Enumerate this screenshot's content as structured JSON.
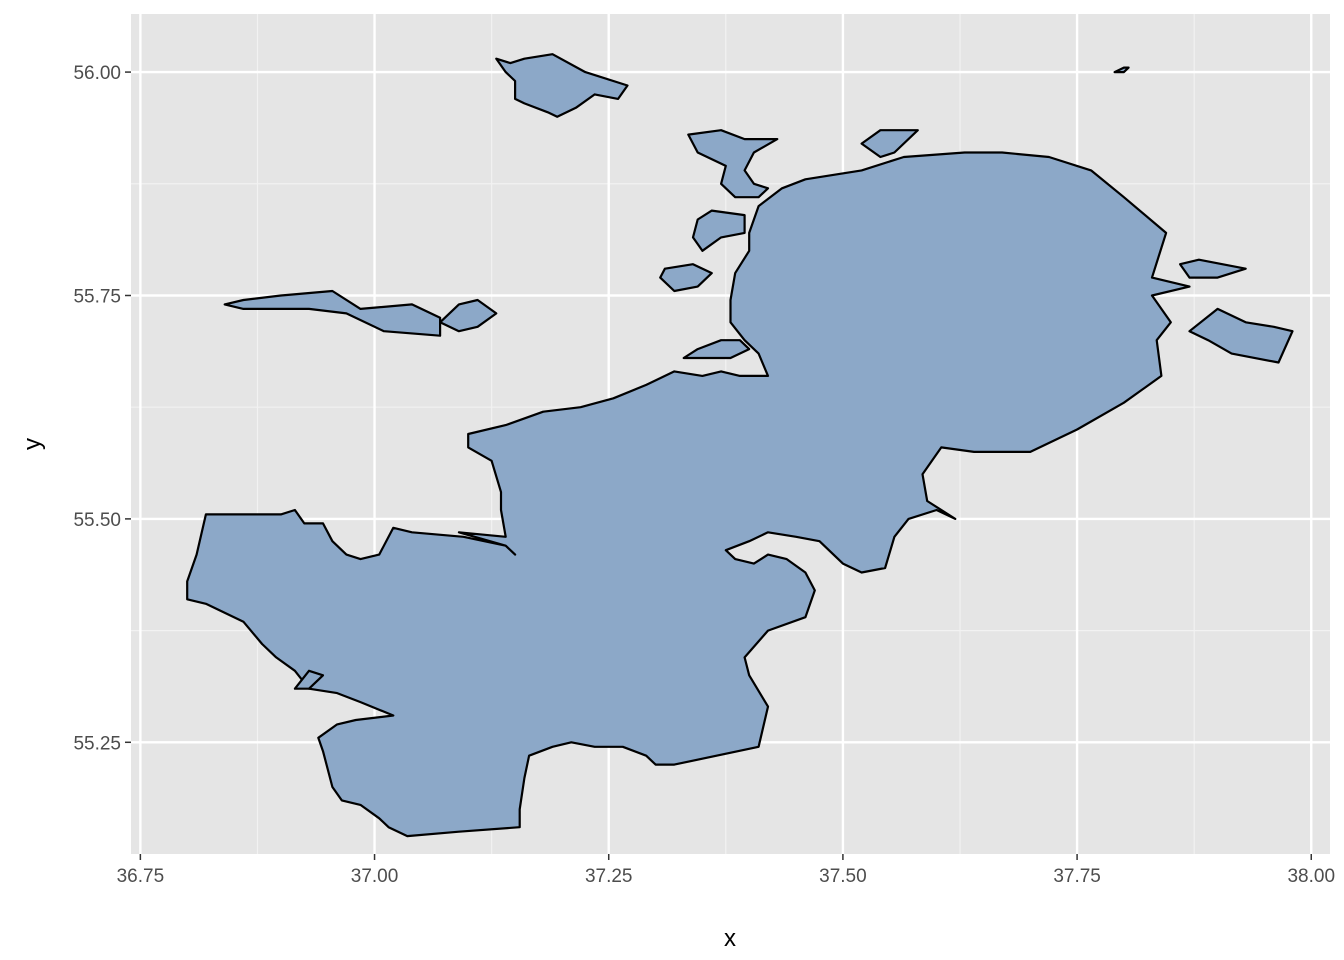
{
  "chart_data": {
    "type": "map",
    "xlabel": "x",
    "ylabel": "y",
    "xlim": [
      36.74,
      38.02
    ],
    "ylim": [
      55.125,
      56.065
    ],
    "x_ticks": [
      36.75,
      37.0,
      37.25,
      37.5,
      37.75,
      38.0
    ],
    "x_tick_labels": [
      "36.75",
      "37.00",
      "37.25",
      "37.50",
      "37.75",
      "38.00"
    ],
    "y_ticks": [
      55.25,
      55.5,
      55.75,
      56.0
    ],
    "y_tick_labels": [
      "55.25",
      "55.50",
      "55.75",
      "56.00"
    ],
    "grid": true,
    "background": "#e5e5e5",
    "fill_color": "#8ca8c8",
    "stroke_color": "#000000",
    "regions": [
      {
        "name": "main",
        "coords": [
          [
            37.15,
            55.46
          ],
          [
            37.14,
            55.47
          ],
          [
            37.095,
            55.48
          ],
          [
            37.04,
            55.485
          ],
          [
            37.02,
            55.49
          ],
          [
            37.005,
            55.46
          ],
          [
            36.985,
            55.455
          ],
          [
            36.97,
            55.46
          ],
          [
            36.955,
            55.475
          ],
          [
            36.945,
            55.495
          ],
          [
            36.925,
            55.495
          ],
          [
            36.915,
            55.51
          ],
          [
            36.9,
            55.505
          ],
          [
            36.87,
            55.505
          ],
          [
            36.82,
            55.505
          ],
          [
            36.81,
            55.46
          ],
          [
            36.8,
            55.43
          ],
          [
            36.8,
            55.41
          ],
          [
            36.82,
            55.405
          ],
          [
            36.86,
            55.385
          ],
          [
            36.88,
            55.36
          ],
          [
            36.895,
            55.345
          ],
          [
            36.915,
            55.33
          ],
          [
            36.93,
            55.31
          ],
          [
            36.96,
            55.305
          ],
          [
            36.985,
            55.295
          ],
          [
            37.02,
            55.28
          ],
          [
            36.98,
            55.275
          ],
          [
            36.96,
            55.27
          ],
          [
            36.94,
            55.255
          ],
          [
            36.945,
            55.24
          ],
          [
            36.955,
            55.2
          ],
          [
            36.965,
            55.185
          ],
          [
            36.985,
            55.18
          ],
          [
            37.005,
            55.165
          ],
          [
            37.015,
            55.155
          ],
          [
            37.035,
            55.145
          ],
          [
            37.09,
            55.15
          ],
          [
            37.155,
            55.155
          ],
          [
            37.155,
            55.175
          ],
          [
            37.16,
            55.21
          ],
          [
            37.165,
            55.235
          ],
          [
            37.19,
            55.245
          ],
          [
            37.21,
            55.25
          ],
          [
            37.235,
            55.245
          ],
          [
            37.265,
            55.245
          ],
          [
            37.29,
            55.235
          ],
          [
            37.3,
            55.225
          ],
          [
            37.32,
            55.225
          ],
          [
            37.41,
            55.245
          ],
          [
            37.42,
            55.29
          ],
          [
            37.4,
            55.325
          ],
          [
            37.395,
            55.345
          ],
          [
            37.42,
            55.375
          ],
          [
            37.46,
            55.39
          ],
          [
            37.47,
            55.42
          ],
          [
            37.46,
            55.44
          ],
          [
            37.44,
            55.455
          ],
          [
            37.42,
            55.46
          ],
          [
            37.405,
            55.45
          ],
          [
            37.385,
            55.455
          ],
          [
            37.375,
            55.465
          ],
          [
            37.4,
            55.475
          ],
          [
            37.42,
            55.485
          ],
          [
            37.45,
            55.48
          ],
          [
            37.475,
            55.475
          ],
          [
            37.5,
            55.45
          ],
          [
            37.52,
            55.44
          ],
          [
            37.545,
            55.445
          ],
          [
            37.555,
            55.48
          ],
          [
            37.57,
            55.5
          ],
          [
            37.6,
            55.51
          ],
          [
            37.62,
            55.5
          ],
          [
            37.59,
            55.52
          ],
          [
            37.585,
            55.55
          ],
          [
            37.605,
            55.58
          ],
          [
            37.64,
            55.575
          ],
          [
            37.7,
            55.575
          ],
          [
            37.75,
            55.6
          ],
          [
            37.8,
            55.63
          ],
          [
            37.84,
            55.66
          ],
          [
            37.835,
            55.7
          ],
          [
            37.85,
            55.72
          ],
          [
            37.83,
            55.75
          ],
          [
            37.87,
            55.76
          ],
          [
            37.83,
            55.77
          ],
          [
            37.845,
            55.82
          ],
          [
            37.8,
            55.86
          ],
          [
            37.765,
            55.89
          ],
          [
            37.72,
            55.905
          ],
          [
            37.67,
            55.91
          ],
          [
            37.63,
            55.91
          ],
          [
            37.565,
            55.905
          ],
          [
            37.52,
            55.89
          ],
          [
            37.46,
            55.88
          ],
          [
            37.435,
            55.87
          ],
          [
            37.41,
            55.85
          ],
          [
            37.4,
            55.82
          ],
          [
            37.4,
            55.8
          ],
          [
            37.385,
            55.775
          ],
          [
            37.38,
            55.745
          ],
          [
            37.38,
            55.72
          ],
          [
            37.395,
            55.7
          ],
          [
            37.41,
            55.685
          ],
          [
            37.42,
            55.66
          ],
          [
            37.39,
            55.66
          ],
          [
            37.37,
            55.665
          ],
          [
            37.35,
            55.66
          ],
          [
            37.32,
            55.665
          ],
          [
            37.29,
            55.65
          ],
          [
            37.255,
            55.635
          ],
          [
            37.22,
            55.625
          ],
          [
            37.18,
            55.62
          ],
          [
            37.14,
            55.605
          ],
          [
            37.1,
            55.595
          ],
          [
            37.1,
            55.58
          ],
          [
            37.125,
            55.565
          ],
          [
            37.135,
            55.53
          ],
          [
            37.135,
            55.51
          ],
          [
            37.14,
            55.48
          ],
          [
            37.09,
            55.485
          ],
          [
            37.14,
            55.47
          ],
          [
            37.15,
            55.46
          ]
        ]
      },
      {
        "name": "northwest-island",
        "coords": [
          [
            37.13,
            56.015
          ],
          [
            37.145,
            56.01
          ],
          [
            37.16,
            56.015
          ],
          [
            37.19,
            56.02
          ],
          [
            37.225,
            56.0
          ],
          [
            37.27,
            55.985
          ],
          [
            37.26,
            55.97
          ],
          [
            37.235,
            55.975
          ],
          [
            37.215,
            55.96
          ],
          [
            37.195,
            55.95
          ],
          [
            37.185,
            55.955
          ],
          [
            37.16,
            55.965
          ],
          [
            37.15,
            55.97
          ],
          [
            37.15,
            55.99
          ],
          [
            37.14,
            56.0
          ],
          [
            37.13,
            56.015
          ]
        ]
      },
      {
        "name": "west-islands",
        "coords": [
          [
            36.84,
            55.74
          ],
          [
            36.86,
            55.745
          ],
          [
            36.9,
            55.75
          ],
          [
            36.955,
            55.755
          ],
          [
            36.985,
            55.735
          ],
          [
            37.04,
            55.74
          ],
          [
            37.07,
            55.725
          ],
          [
            37.07,
            55.705
          ],
          [
            37.01,
            55.71
          ],
          [
            36.97,
            55.73
          ],
          [
            36.93,
            55.735
          ],
          [
            36.9,
            55.735
          ],
          [
            36.86,
            55.735
          ],
          [
            36.84,
            55.74
          ]
        ]
      },
      {
        "name": "west-islands-east",
        "coords": [
          [
            37.07,
            55.72
          ],
          [
            37.09,
            55.74
          ],
          [
            37.11,
            55.745
          ],
          [
            37.13,
            55.73
          ],
          [
            37.11,
            55.715
          ],
          [
            37.09,
            55.71
          ],
          [
            37.07,
            55.72
          ]
        ]
      },
      {
        "name": "north-peninsula",
        "coords": [
          [
            37.335,
            55.93
          ],
          [
            37.37,
            55.935
          ],
          [
            37.395,
            55.925
          ],
          [
            37.43,
            55.925
          ],
          [
            37.405,
            55.91
          ],
          [
            37.395,
            55.89
          ],
          [
            37.405,
            55.875
          ],
          [
            37.42,
            55.87
          ],
          [
            37.41,
            55.86
          ],
          [
            37.385,
            55.86
          ],
          [
            37.37,
            55.875
          ],
          [
            37.375,
            55.895
          ],
          [
            37.345,
            55.91
          ],
          [
            37.335,
            55.93
          ]
        ]
      },
      {
        "name": "north-spike",
        "coords": [
          [
            37.52,
            55.92
          ],
          [
            37.54,
            55.935
          ],
          [
            37.58,
            55.935
          ],
          [
            37.555,
            55.91
          ],
          [
            37.54,
            55.905
          ],
          [
            37.52,
            55.92
          ]
        ]
      },
      {
        "name": "west-lobe-upper",
        "coords": [
          [
            37.345,
            55.835
          ],
          [
            37.36,
            55.845
          ],
          [
            37.395,
            55.84
          ],
          [
            37.395,
            55.82
          ],
          [
            37.37,
            55.815
          ],
          [
            37.35,
            55.8
          ],
          [
            37.34,
            55.815
          ],
          [
            37.345,
            55.835
          ]
        ]
      },
      {
        "name": "west-lobe-middle",
        "coords": [
          [
            37.305,
            55.77
          ],
          [
            37.31,
            55.78
          ],
          [
            37.34,
            55.785
          ],
          [
            37.36,
            55.775
          ],
          [
            37.345,
            55.76
          ],
          [
            37.32,
            55.755
          ],
          [
            37.305,
            55.77
          ]
        ]
      },
      {
        "name": "west-lobe-lower",
        "coords": [
          [
            37.33,
            55.68
          ],
          [
            37.345,
            55.69
          ],
          [
            37.37,
            55.7
          ],
          [
            37.39,
            55.7
          ],
          [
            37.4,
            55.69
          ],
          [
            37.38,
            55.68
          ],
          [
            37.355,
            55.68
          ],
          [
            37.33,
            55.68
          ]
        ]
      },
      {
        "name": "east-arm",
        "coords": [
          [
            37.9,
            55.735
          ],
          [
            37.93,
            55.72
          ],
          [
            37.96,
            55.715
          ],
          [
            37.98,
            55.71
          ],
          [
            37.965,
            55.675
          ],
          [
            37.915,
            55.685
          ],
          [
            37.89,
            55.7
          ],
          [
            37.87,
            55.71
          ],
          [
            37.9,
            55.735
          ]
        ]
      },
      {
        "name": "east-upper-bump",
        "coords": [
          [
            37.86,
            55.785
          ],
          [
            37.88,
            55.79
          ],
          [
            37.93,
            55.78
          ],
          [
            37.9,
            55.77
          ],
          [
            37.87,
            55.77
          ],
          [
            37.86,
            55.785
          ]
        ]
      },
      {
        "name": "small-southwest-fragment",
        "coords": [
          [
            36.915,
            55.31
          ],
          [
            36.93,
            55.33
          ],
          [
            36.945,
            55.325
          ],
          [
            36.93,
            55.31
          ],
          [
            36.915,
            55.31
          ]
        ]
      },
      {
        "name": "tiny-northeast-fragment",
        "coords": [
          [
            37.79,
            56.0
          ],
          [
            37.8,
            56.005
          ],
          [
            37.805,
            56.005
          ],
          [
            37.8,
            56.0
          ],
          [
            37.79,
            56.0
          ]
        ]
      }
    ]
  }
}
